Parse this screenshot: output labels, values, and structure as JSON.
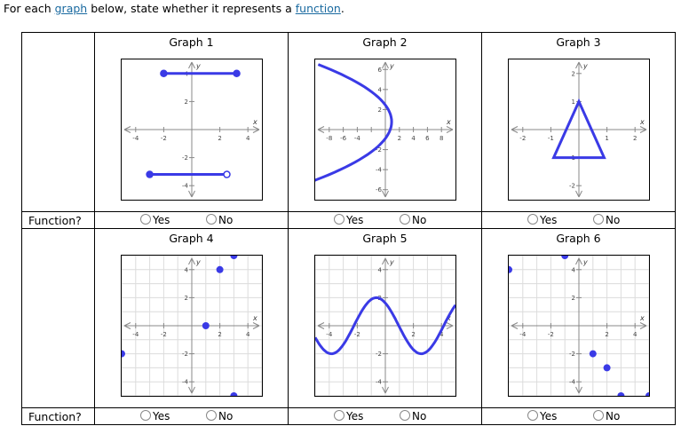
{
  "intro": {
    "prefix": "For each ",
    "link1": "graph",
    "middle": " below, state whether it represents a ",
    "link2": "function",
    "suffix": "."
  },
  "row_label": "Function?",
  "option_yes": "Yes",
  "option_no": "No",
  "graphs": [
    {
      "title": "Graph 1",
      "axis_labels": {
        "x": "x",
        "y": "y"
      },
      "x_range": [
        -5,
        5
      ],
      "y_range": [
        -5,
        5
      ],
      "x_ticks": [
        {
          "v": -4,
          "label": "-4"
        },
        {
          "v": -2,
          "label": "-2"
        },
        {
          "v": 2,
          "label": "2"
        },
        {
          "v": 4,
          "label": "4"
        }
      ],
      "y_ticks": [
        {
          "v": 4,
          "label": "4"
        },
        {
          "v": 2,
          "label": "2"
        },
        {
          "v": -2,
          "label": "-2"
        },
        {
          "v": -4,
          "label": "-4"
        }
      ],
      "grid": false,
      "segments": [
        {
          "x1": -2,
          "y1": 4,
          "x2": 3.2,
          "y2": 4,
          "start": "closed",
          "end": "closed"
        },
        {
          "x1": -3,
          "y1": -3.2,
          "x2": 2.5,
          "y2": -3.2,
          "start": "closed",
          "end": "open"
        }
      ]
    },
    {
      "title": "Graph 2",
      "axis_labels": {
        "x": "x",
        "y": "y"
      },
      "x_range": [
        -10,
        10
      ],
      "y_range": [
        -7,
        7
      ],
      "x_ticks": [
        {
          "v": -8,
          "label": "-8"
        },
        {
          "v": -6,
          "label": "-6"
        },
        {
          "v": -4,
          "label": "-4"
        },
        {
          "v": -2,
          "label": ""
        },
        {
          "v": 2,
          "label": "2"
        },
        {
          "v": 4,
          "label": "4"
        },
        {
          "v": 6,
          "label": "6"
        },
        {
          "v": 8,
          "label": "8"
        }
      ],
      "y_ticks": [
        {
          "v": 6,
          "label": "6"
        },
        {
          "v": 4,
          "label": "4"
        },
        {
          "v": 2,
          "label": "2"
        },
        {
          "v": -2,
          "label": "-2"
        },
        {
          "v": -4,
          "label": "-4"
        },
        {
          "v": -6,
          "label": "-6"
        }
      ],
      "grid": false,
      "curve": "sideways-parabola"
    },
    {
      "title": "Graph 3",
      "axis_labels": {
        "x": "x",
        "y": "y"
      },
      "x_range": [
        -2.5,
        2.5
      ],
      "y_range": [
        -2.5,
        2.5
      ],
      "x_ticks": [
        {
          "v": -2,
          "label": "-2"
        },
        {
          "v": -1,
          "label": "-1"
        },
        {
          "v": 1,
          "label": "1"
        },
        {
          "v": 2,
          "label": "2"
        }
      ],
      "y_ticks": [
        {
          "v": 2,
          "label": "2"
        },
        {
          "v": 1,
          "label": "1"
        },
        {
          "v": -1,
          "label": "-1"
        },
        {
          "v": -2,
          "label": "-2"
        }
      ],
      "grid": false,
      "polygon": [
        [
          0,
          1
        ],
        [
          -0.9,
          -1
        ],
        [
          0.9,
          -1
        ]
      ]
    },
    {
      "title": "Graph 4",
      "axis_labels": {
        "x": "x",
        "y": "y"
      },
      "x_range": [
        -5,
        5
      ],
      "y_range": [
        -5,
        5
      ],
      "x_ticks": [
        {
          "v": -4,
          "label": "-4"
        },
        {
          "v": -2,
          "label": "-2"
        },
        {
          "v": 2,
          "label": "2"
        },
        {
          "v": 4,
          "label": "4"
        }
      ],
      "y_ticks": [
        {
          "v": 4,
          "label": "4"
        },
        {
          "v": 2,
          "label": "2"
        },
        {
          "v": -2,
          "label": "-2"
        },
        {
          "v": -4,
          "label": "-4"
        }
      ],
      "grid": true,
      "points": [
        [
          -5,
          -2
        ],
        [
          1,
          0
        ],
        [
          2,
          4
        ],
        [
          3,
          5
        ],
        [
          3,
          -5
        ]
      ]
    },
    {
      "title": "Graph 5",
      "axis_labels": {
        "x": "x",
        "y": "y"
      },
      "x_range": [
        -5,
        5
      ],
      "y_range": [
        -5,
        5
      ],
      "x_ticks": [
        {
          "v": -4,
          "label": "-4"
        },
        {
          "v": -2,
          "label": "-2"
        },
        {
          "v": 2,
          "label": "2"
        },
        {
          "v": 4,
          "label": "4"
        }
      ],
      "y_ticks": [
        {
          "v": 4,
          "label": "4"
        },
        {
          "v": 2,
          "label": "2"
        },
        {
          "v": -2,
          "label": "-2"
        },
        {
          "v": -4,
          "label": "-4"
        }
      ],
      "grid": true,
      "curve": "sine"
    },
    {
      "title": "Graph 6",
      "axis_labels": {
        "x": "x",
        "y": "y"
      },
      "x_range": [
        -5,
        5
      ],
      "y_range": [
        -5,
        5
      ],
      "x_ticks": [
        {
          "v": -4,
          "label": "-4"
        },
        {
          "v": -2,
          "label": "-2"
        },
        {
          "v": 2,
          "label": "2"
        },
        {
          "v": 4,
          "label": "4"
        }
      ],
      "y_ticks": [
        {
          "v": 4,
          "label": "4"
        },
        {
          "v": 2,
          "label": "2"
        },
        {
          "v": -2,
          "label": "-2"
        },
        {
          "v": -4,
          "label": "-4"
        }
      ],
      "grid": true,
      "points": [
        [
          -5,
          4
        ],
        [
          -1,
          5
        ],
        [
          1,
          -2
        ],
        [
          2,
          -3
        ],
        [
          3,
          -5
        ],
        [
          5,
          -5
        ]
      ]
    }
  ],
  "colors": {
    "plot": "#3a3ae6",
    "axis": "#888888",
    "grid": "#dcdcdc",
    "link": "#1a6aa0"
  }
}
